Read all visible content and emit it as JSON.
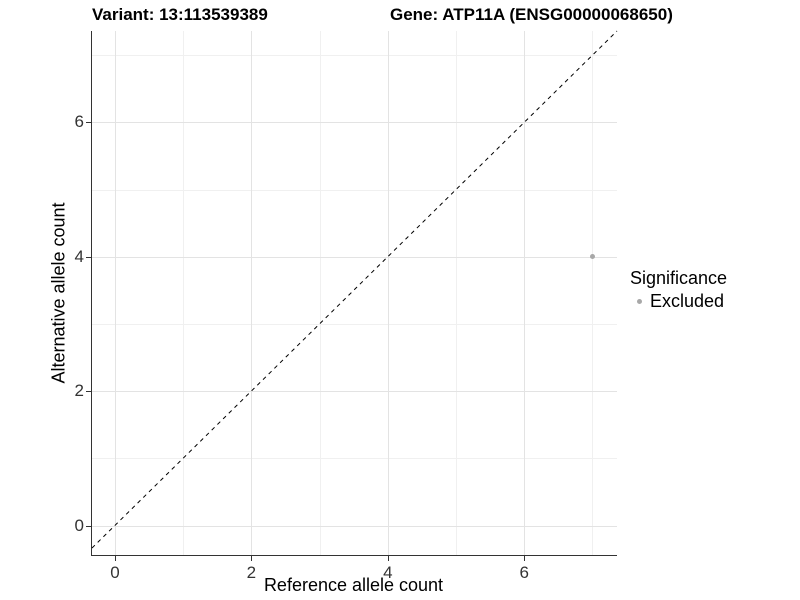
{
  "chart_data": {
    "type": "scatter",
    "title_left": "Variant: 13:113539389",
    "title_right": "Gene: ATP11A (ENSG00000068650)",
    "xlabel": "Reference allele count",
    "ylabel": "Alternative allele count",
    "x_ticks": [
      0,
      2,
      4,
      6
    ],
    "y_ticks": [
      0,
      2,
      4,
      6
    ],
    "minor_grid_x": [
      1,
      3,
      5,
      7
    ],
    "minor_grid_y": [
      1,
      3,
      5,
      7
    ],
    "xlim": [
      -0.35,
      7.35
    ],
    "ylim": [
      -0.45,
      7.35
    ],
    "grid": "major+minor",
    "background": "#ffffff",
    "axis_line_color": "#333333",
    "reference_line": {
      "type": "identity",
      "equation": "y = x",
      "style": "dashed",
      "color": "#000000"
    },
    "points": [
      {
        "x": 7,
        "y": 4,
        "series": "Excluded"
      }
    ],
    "legend": {
      "title": "Significance",
      "position": "right",
      "entries": [
        {
          "label": "Excluded",
          "color": "#a8a8a8"
        }
      ]
    }
  }
}
